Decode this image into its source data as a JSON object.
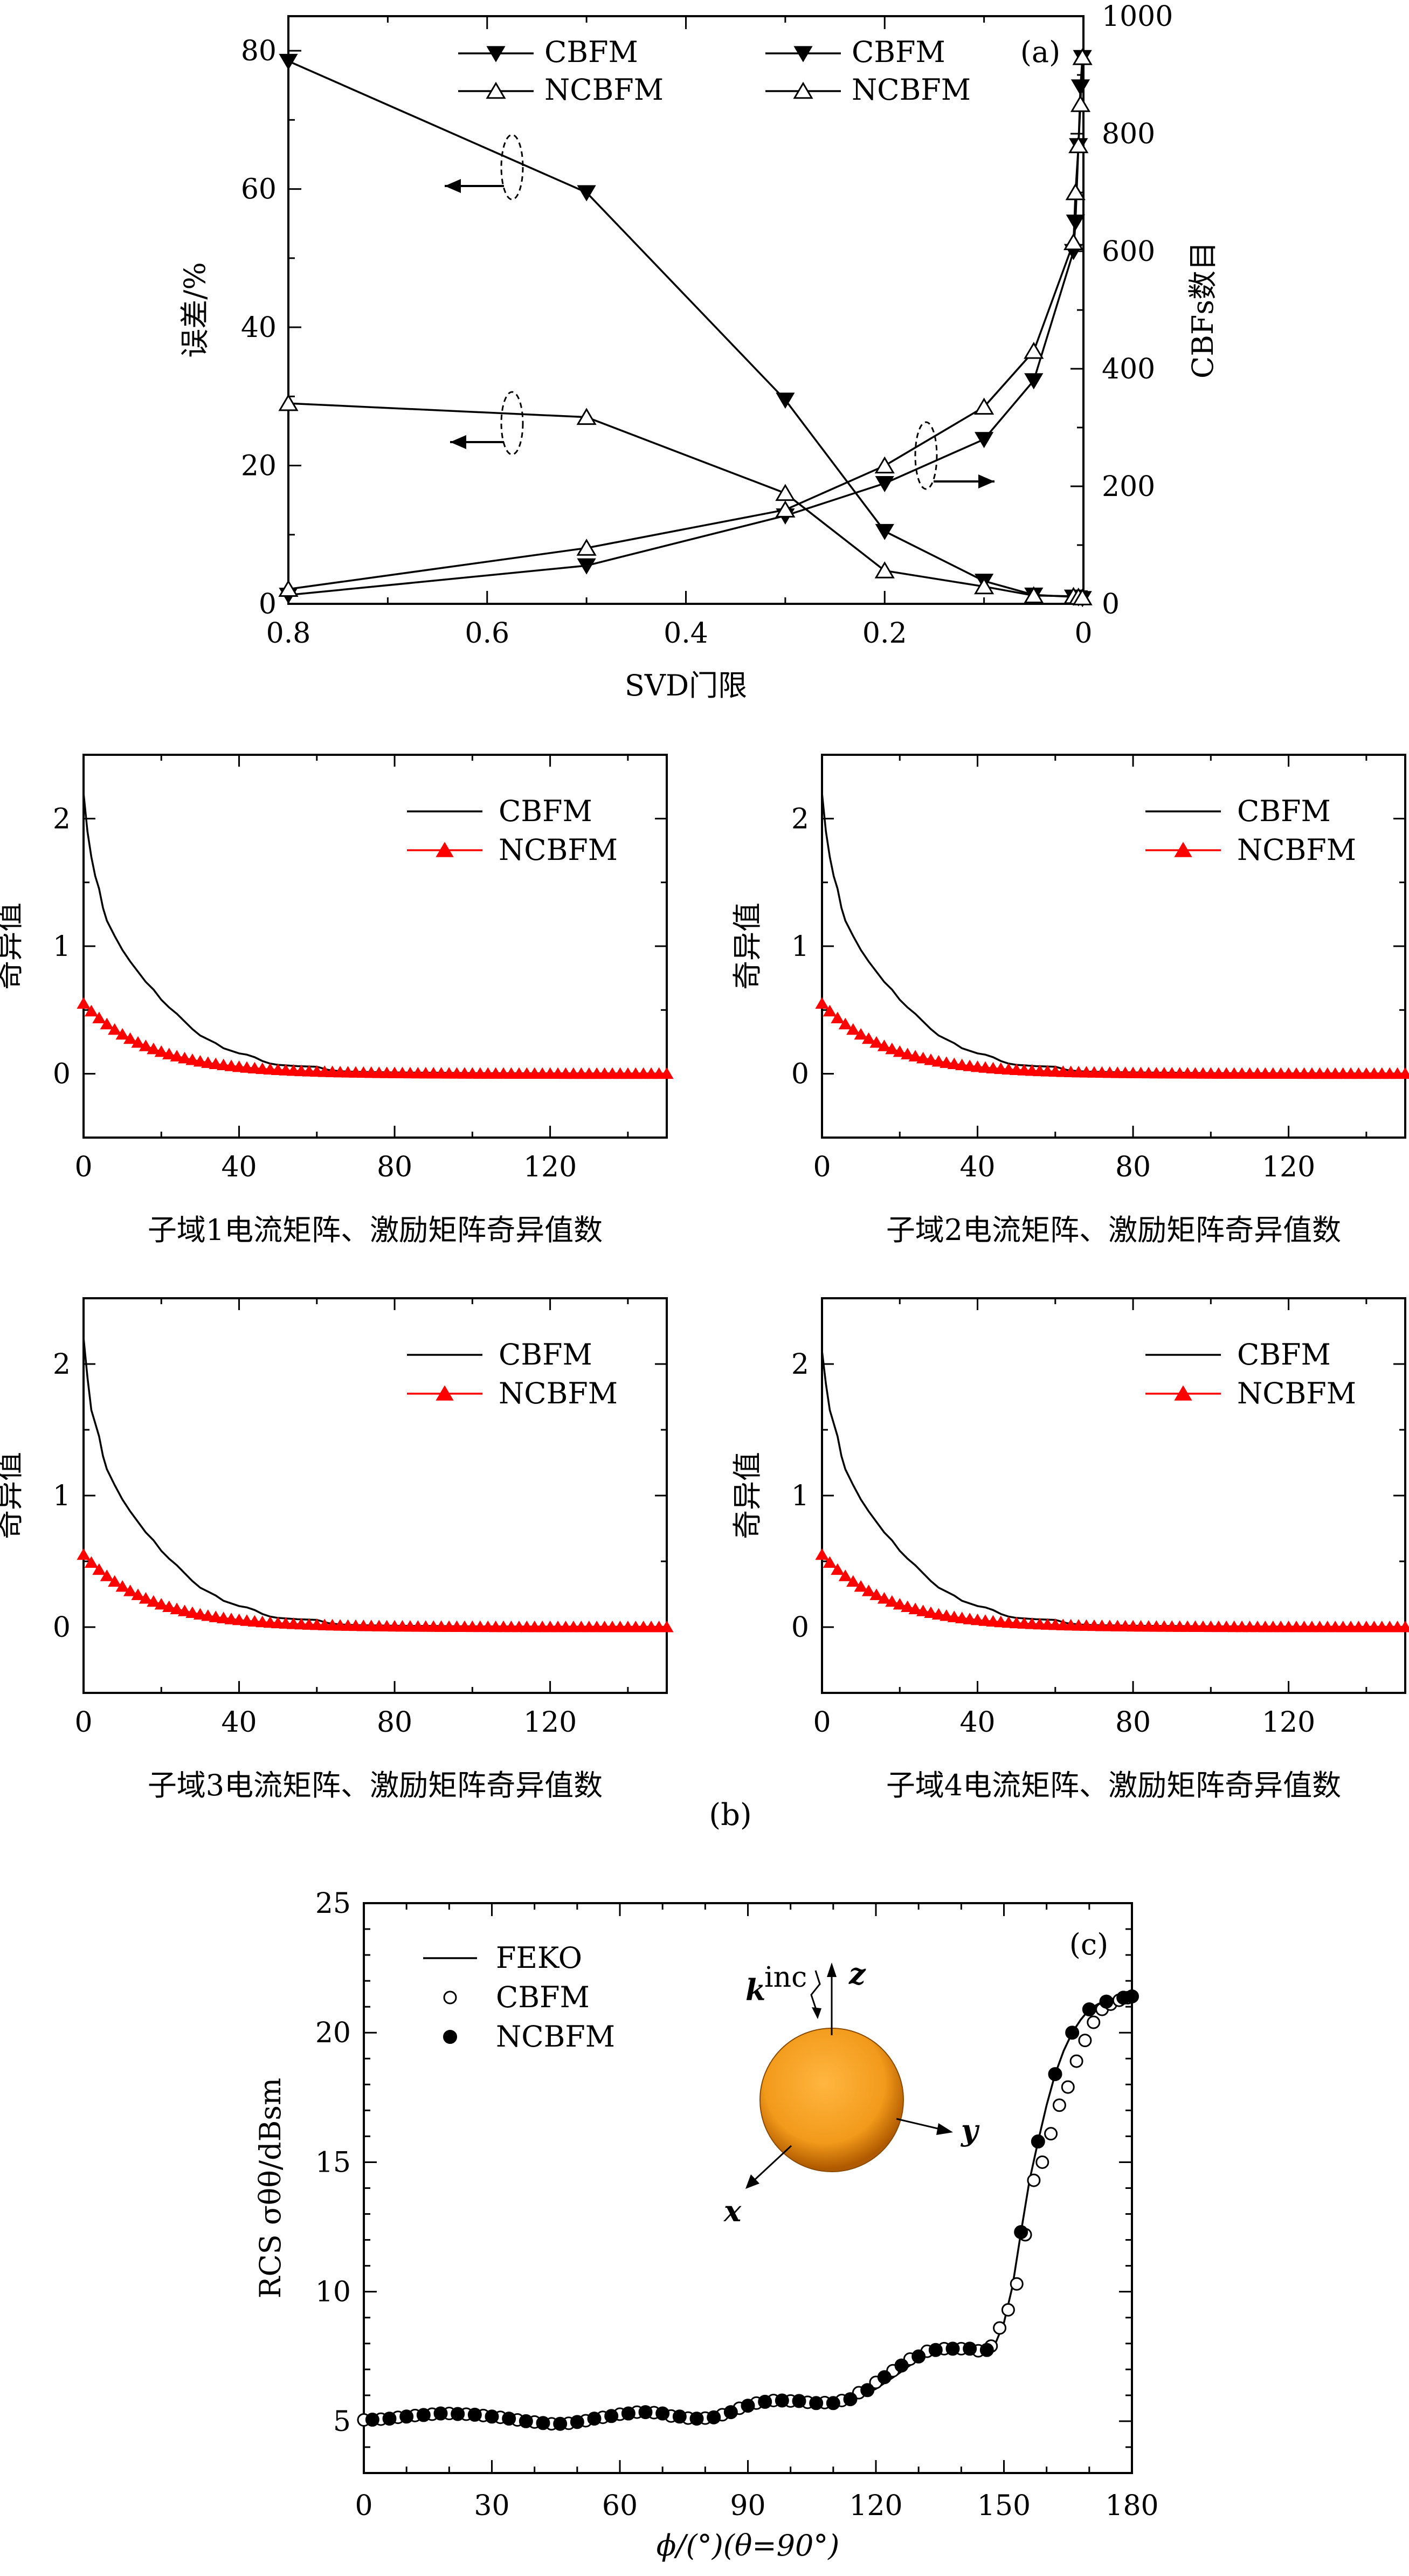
{
  "figure": {
    "caption_b": "(b)"
  },
  "chart_data": [
    {
      "id": "a",
      "type": "line",
      "panel_label": "(a)",
      "xlabel": "SVD门限",
      "ylabel_left": "误差/%",
      "ylabel_right": "CBFs数目",
      "x_reversed": true,
      "xlim": [
        0.8,
        0
      ],
      "ylim_left": [
        0,
        85
      ],
      "ylim_right": [
        0,
        1000
      ],
      "x_ticks": [
        "0.8",
        "0.6",
        "0.4",
        "0.2",
        "0"
      ],
      "yleft_ticks": [
        "0",
        "20",
        "40",
        "60",
        "80"
      ],
      "yright_ticks": [
        "0",
        "200",
        "400",
        "600",
        "800",
        "1000"
      ],
      "legend": {
        "left": [
          {
            "name": "CBFM",
            "marker": "filled-down-triangle"
          },
          {
            "name": "NCBFM",
            "marker": "open-up-triangle"
          }
        ],
        "right": [
          {
            "name": "CBFM",
            "marker": "filled-down-triangle"
          },
          {
            "name": "NCBFM",
            "marker": "open-up-triangle"
          }
        ]
      },
      "series": [
        {
          "name": "CBFM",
          "axis": "left",
          "marker": "filled-down-triangle",
          "x": [
            0.8,
            0.5,
            0.3,
            0.2,
            0.1,
            0.05,
            0.01,
            0.005,
            0.001
          ],
          "y": [
            78.5,
            59.5,
            29.5,
            10.5,
            3.3,
            1.3,
            1.0,
            0.9,
            0.8
          ]
        },
        {
          "name": "NCBFM",
          "axis": "left",
          "marker": "open-up-triangle",
          "x": [
            0.8,
            0.5,
            0.3,
            0.2,
            0.1,
            0.05,
            0.01,
            0.005,
            0.001
          ],
          "y": [
            29.0,
            27.0,
            16.0,
            4.8,
            2.5,
            1.2,
            1.1,
            1.0,
            0.9
          ]
        },
        {
          "name": "CBFM",
          "axis": "right",
          "marker": "filled-down-triangle",
          "x": [
            0.8,
            0.5,
            0.3,
            0.2,
            0.1,
            0.05,
            0.01,
            0.008,
            0.005,
            0.003,
            0.001
          ],
          "y": [
            15,
            65,
            150,
            205,
            280,
            380,
            600,
            650,
            780,
            880,
            930
          ]
        },
        {
          "name": "NCBFM",
          "axis": "right",
          "marker": "open-up-triangle",
          "x": [
            0.8,
            0.5,
            0.3,
            0.2,
            0.1,
            0.05,
            0.01,
            0.008,
            0.005,
            0.003,
            0.001
          ],
          "y": [
            25,
            95,
            160,
            235,
            335,
            430,
            615,
            700,
            780,
            850,
            930
          ]
        }
      ],
      "annotations": {
        "left_arrows": 2,
        "right_arrows": 1
      }
    },
    {
      "id": "b1",
      "type": "line",
      "xlabel": "子域1电流矩阵、激励矩阵奇异值数",
      "ylabel": "奇异值",
      "xlim": [
        0,
        150
      ],
      "ylim": [
        -0.5,
        2.5
      ],
      "x_ticks": [
        "0",
        "40",
        "80",
        "120"
      ],
      "y_ticks": [
        "0",
        "1",
        "2"
      ],
      "legend": [
        {
          "name": "CBFM",
          "color": "#000000"
        },
        {
          "name": "NCBFM",
          "color": "#ff0000",
          "marker": "filled-up-triangle"
        }
      ],
      "series": [
        {
          "name": "CBFM",
          "color": "#000000",
          "x": [
            0,
            1,
            2,
            3,
            4,
            5,
            6,
            8,
            10,
            12,
            14,
            16,
            18,
            20,
            22,
            24,
            26,
            28,
            30,
            32,
            34,
            36,
            38,
            40,
            42,
            44,
            46,
            48,
            50,
            55,
            60,
            63,
            66,
            70,
            80,
            90,
            100,
            120,
            150
          ],
          "y": [
            2.2,
            1.9,
            1.7,
            1.55,
            1.45,
            1.3,
            1.2,
            1.08,
            0.97,
            0.88,
            0.8,
            0.72,
            0.66,
            0.58,
            0.52,
            0.47,
            0.41,
            0.35,
            0.3,
            0.27,
            0.24,
            0.2,
            0.18,
            0.16,
            0.15,
            0.13,
            0.1,
            0.08,
            0.07,
            0.06,
            0.055,
            0.03,
            0.02,
            0.015,
            0.01,
            0.008,
            0.005,
            0.003,
            0.002
          ]
        },
        {
          "name": "NCBFM",
          "color": "#ff0000",
          "marker_every": 2,
          "start": 0.55,
          "decay": 0.058,
          "n": 150
        }
      ]
    },
    {
      "id": "b2",
      "type": "line",
      "xlabel": "子域2电流矩阵、激励矩阵奇异值数",
      "ylabel": "奇异值",
      "xlim": [
        0,
        150
      ],
      "ylim": [
        -0.5,
        2.5
      ],
      "x_ticks": [
        "0",
        "40",
        "80",
        "120"
      ],
      "y_ticks": [
        "0",
        "1",
        "2"
      ],
      "legend": [
        {
          "name": "CBFM",
          "color": "#000000"
        },
        {
          "name": "NCBFM",
          "color": "#ff0000",
          "marker": "filled-up-triangle"
        }
      ],
      "series": [
        {
          "name": "CBFM",
          "color": "#000000",
          "x": [
            0,
            1,
            2,
            3,
            4,
            5,
            6,
            8,
            10,
            12,
            14,
            16,
            18,
            20,
            22,
            24,
            26,
            28,
            30,
            32,
            34,
            36,
            38,
            40,
            42,
            44,
            46,
            48,
            50,
            55,
            60,
            63,
            66,
            70,
            80,
            90,
            100,
            120,
            150
          ],
          "y": [
            2.2,
            1.9,
            1.7,
            1.55,
            1.45,
            1.3,
            1.2,
            1.08,
            0.97,
            0.88,
            0.8,
            0.72,
            0.66,
            0.58,
            0.52,
            0.47,
            0.41,
            0.35,
            0.3,
            0.27,
            0.24,
            0.2,
            0.18,
            0.16,
            0.15,
            0.13,
            0.1,
            0.08,
            0.07,
            0.06,
            0.055,
            0.03,
            0.02,
            0.015,
            0.01,
            0.008,
            0.005,
            0.003,
            0.002
          ]
        },
        {
          "name": "NCBFM",
          "color": "#ff0000",
          "marker_every": 2,
          "start": 0.55,
          "decay": 0.058,
          "n": 150
        }
      ]
    },
    {
      "id": "b3",
      "type": "line",
      "xlabel": "子域3电流矩阵、激励矩阵奇异值数",
      "ylabel": "奇异值",
      "xlim": [
        0,
        150
      ],
      "ylim": [
        -0.5,
        2.5
      ],
      "x_ticks": [
        "0",
        "40",
        "80",
        "120"
      ],
      "y_ticks": [
        "0",
        "1",
        "2"
      ],
      "legend": [
        {
          "name": "CBFM",
          "color": "#000000"
        },
        {
          "name": "NCBFM",
          "color": "#ff0000",
          "marker": "filled-up-triangle"
        }
      ],
      "series": [
        {
          "name": "CBFM",
          "color": "#000000",
          "x": [
            0,
            1,
            2,
            3,
            4,
            5,
            6,
            8,
            10,
            12,
            14,
            16,
            18,
            20,
            22,
            24,
            26,
            28,
            30,
            32,
            34,
            36,
            38,
            40,
            42,
            44,
            46,
            48,
            50,
            55,
            60,
            63,
            66,
            70,
            80,
            90,
            100,
            120,
            150
          ],
          "y": [
            2.2,
            1.9,
            1.65,
            1.55,
            1.45,
            1.3,
            1.2,
            1.08,
            0.97,
            0.88,
            0.8,
            0.72,
            0.66,
            0.58,
            0.52,
            0.47,
            0.41,
            0.35,
            0.3,
            0.27,
            0.24,
            0.2,
            0.18,
            0.16,
            0.15,
            0.13,
            0.1,
            0.08,
            0.07,
            0.06,
            0.055,
            0.03,
            0.02,
            0.015,
            0.01,
            0.008,
            0.005,
            0.003,
            0.002
          ]
        },
        {
          "name": "NCBFM",
          "color": "#ff0000",
          "marker_every": 2,
          "start": 0.55,
          "decay": 0.058,
          "n": 150
        }
      ]
    },
    {
      "id": "b4",
      "type": "line",
      "xlabel": "子域4电流矩阵、激励矩阵奇异值数",
      "ylabel": "奇异值",
      "xlim": [
        0,
        150
      ],
      "ylim": [
        -0.5,
        2.5
      ],
      "x_ticks": [
        "0",
        "40",
        "80",
        "120"
      ],
      "y_ticks": [
        "0",
        "1",
        "2"
      ],
      "legend": [
        {
          "name": "CBFM",
          "color": "#000000"
        },
        {
          "name": "NCBFM",
          "color": "#ff0000",
          "marker": "filled-up-triangle"
        }
      ],
      "series": [
        {
          "name": "CBFM",
          "color": "#000000",
          "x": [
            0,
            1,
            2,
            3,
            4,
            5,
            6,
            8,
            10,
            12,
            14,
            16,
            18,
            20,
            22,
            24,
            26,
            28,
            30,
            32,
            34,
            36,
            38,
            40,
            42,
            44,
            46,
            48,
            50,
            55,
            60,
            63,
            66,
            70,
            80,
            90,
            100,
            120,
            150
          ],
          "y": [
            2.1,
            1.85,
            1.65,
            1.55,
            1.45,
            1.3,
            1.2,
            1.08,
            0.97,
            0.88,
            0.8,
            0.72,
            0.66,
            0.58,
            0.52,
            0.47,
            0.41,
            0.35,
            0.3,
            0.27,
            0.24,
            0.2,
            0.18,
            0.16,
            0.15,
            0.13,
            0.1,
            0.08,
            0.07,
            0.06,
            0.055,
            0.03,
            0.02,
            0.015,
            0.01,
            0.008,
            0.005,
            0.003,
            0.002
          ]
        },
        {
          "name": "NCBFM",
          "color": "#ff0000",
          "marker_every": 2,
          "start": 0.55,
          "decay": 0.058,
          "n": 150
        }
      ]
    },
    {
      "id": "c",
      "type": "line",
      "panel_label": "(c)",
      "xlabel": "ϕ/(°)(θ=90°)",
      "ylabel": "RCS σθθ/dBsm",
      "xlim": [
        0,
        180
      ],
      "ylim": [
        3,
        25
      ],
      "x_ticks": [
        "0",
        "30",
        "60",
        "90",
        "120",
        "150",
        "180"
      ],
      "y_ticks": [
        "5",
        "10",
        "15",
        "20",
        "25"
      ],
      "legend": [
        {
          "name": "FEKO",
          "marker": "line"
        },
        {
          "name": "CBFM",
          "marker": "open-circle"
        },
        {
          "name": "NCBFM",
          "marker": "filled-circle"
        }
      ],
      "inset": {
        "k_label": "k",
        "k_sup": "inc",
        "axes": [
          "z",
          "y",
          "x"
        ],
        "sphere_color": "#f29a1a"
      },
      "series": [
        {
          "name": "FEKO",
          "x": [
            0,
            5,
            10,
            15,
            20,
            25,
            30,
            35,
            40,
            45,
            50,
            55,
            60,
            65,
            70,
            75,
            80,
            85,
            90,
            95,
            100,
            105,
            110,
            115,
            120,
            125,
            130,
            135,
            140,
            145,
            148,
            150,
            152,
            154,
            156,
            158,
            160,
            162,
            164,
            166,
            168,
            170,
            172,
            174,
            176,
            178,
            180
          ],
          "y": [
            5.05,
            5.1,
            5.2,
            5.25,
            5.3,
            5.25,
            5.2,
            5.1,
            5.0,
            4.9,
            4.95,
            5.1,
            5.25,
            5.35,
            5.3,
            5.15,
            5.1,
            5.25,
            5.55,
            5.75,
            5.8,
            5.75,
            5.7,
            5.85,
            6.25,
            6.8,
            7.4,
            7.75,
            7.8,
            7.7,
            8.0,
            8.8,
            10.2,
            12.3,
            14.3,
            15.8,
            17.2,
            18.4,
            19.3,
            20.0,
            20.5,
            20.9,
            21.1,
            21.25,
            21.3,
            21.35,
            21.4
          ]
        },
        {
          "name": "CBFM",
          "marker": "open-circle",
          "x": [
            0,
            4,
            8,
            12,
            16,
            20,
            24,
            28,
            32,
            36,
            40,
            44,
            48,
            52,
            56,
            60,
            64,
            68,
            72,
            76,
            80,
            84,
            88,
            92,
            96,
            100,
            104,
            108,
            112,
            116,
            120,
            124,
            128,
            132,
            136,
            140,
            144,
            147,
            149,
            151,
            153,
            155,
            157,
            159,
            161,
            163,
            165,
            167,
            169,
            171,
            173,
            175,
            177,
            179
          ],
          "y": [
            5.05,
            5.08,
            5.15,
            5.22,
            5.27,
            5.3,
            5.27,
            5.22,
            5.15,
            5.05,
            4.97,
            4.9,
            4.92,
            5.02,
            5.15,
            5.27,
            5.35,
            5.33,
            5.2,
            5.12,
            5.12,
            5.25,
            5.5,
            5.7,
            5.8,
            5.78,
            5.73,
            5.72,
            5.8,
            6.1,
            6.5,
            6.95,
            7.4,
            7.7,
            7.8,
            7.8,
            7.72,
            7.9,
            8.6,
            9.3,
            10.3,
            12.2,
            14.3,
            15.0,
            16.1,
            17.2,
            17.9,
            18.9,
            19.7,
            20.4,
            20.9,
            21.1,
            21.25,
            21.35
          ]
        },
        {
          "name": "NCBFM",
          "marker": "filled-circle",
          "x": [
            2,
            6,
            10,
            14,
            18,
            22,
            26,
            30,
            34,
            38,
            42,
            46,
            50,
            54,
            58,
            62,
            66,
            70,
            74,
            78,
            82,
            86,
            90,
            94,
            98,
            102,
            106,
            110,
            114,
            118,
            122,
            126,
            130,
            134,
            138,
            142,
            146,
            154,
            158,
            162,
            166,
            170,
            174,
            178,
            180
          ],
          "y": [
            5.06,
            5.1,
            5.18,
            5.24,
            5.3,
            5.28,
            5.25,
            5.18,
            5.1,
            5.0,
            4.93,
            4.9,
            4.97,
            5.1,
            5.2,
            5.3,
            5.35,
            5.3,
            5.18,
            5.1,
            5.15,
            5.35,
            5.6,
            5.75,
            5.8,
            5.78,
            5.7,
            5.7,
            5.85,
            6.2,
            6.7,
            7.15,
            7.5,
            7.75,
            7.8,
            7.8,
            7.75,
            12.3,
            15.8,
            18.4,
            20.0,
            20.9,
            21.2,
            21.35,
            21.4
          ]
        }
      ]
    }
  ]
}
